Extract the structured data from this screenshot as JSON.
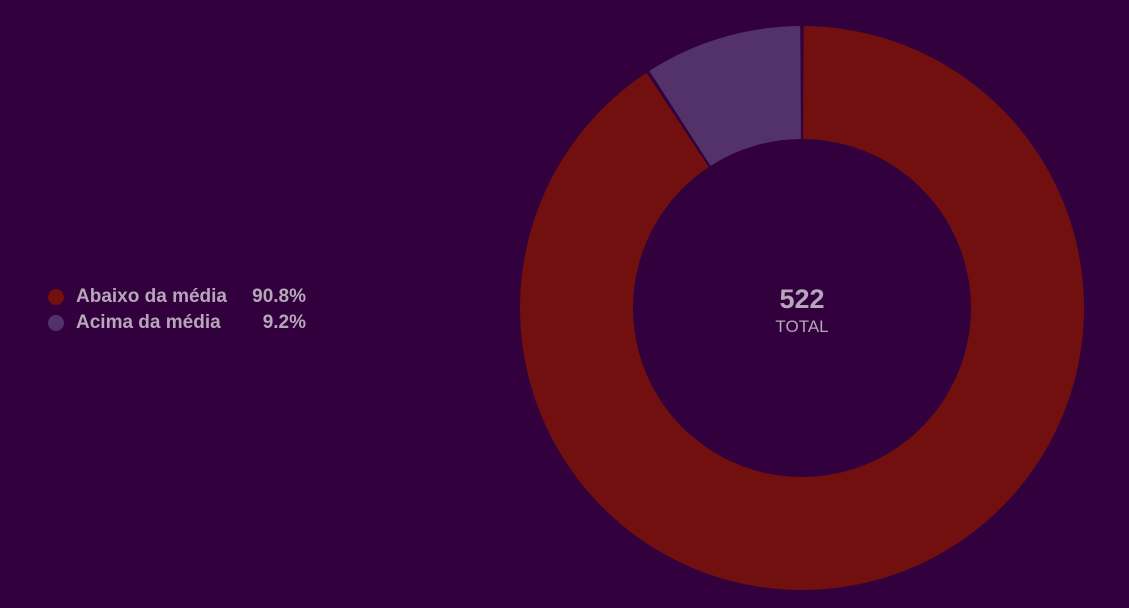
{
  "chart_data": {
    "type": "pie",
    "donut": true,
    "categories": [
      "Abaixo da média",
      "Acima da média"
    ],
    "values": [
      90.8,
      9.2
    ],
    "value_labels": [
      "90.8%",
      "9.2%"
    ],
    "colors": [
      "#721010",
      "#53326a"
    ],
    "center_value": "522",
    "center_label": "TOTAL",
    "legend_position": "left"
  },
  "colors": {
    "background": "#32003c",
    "text": "#b5a7b9"
  }
}
